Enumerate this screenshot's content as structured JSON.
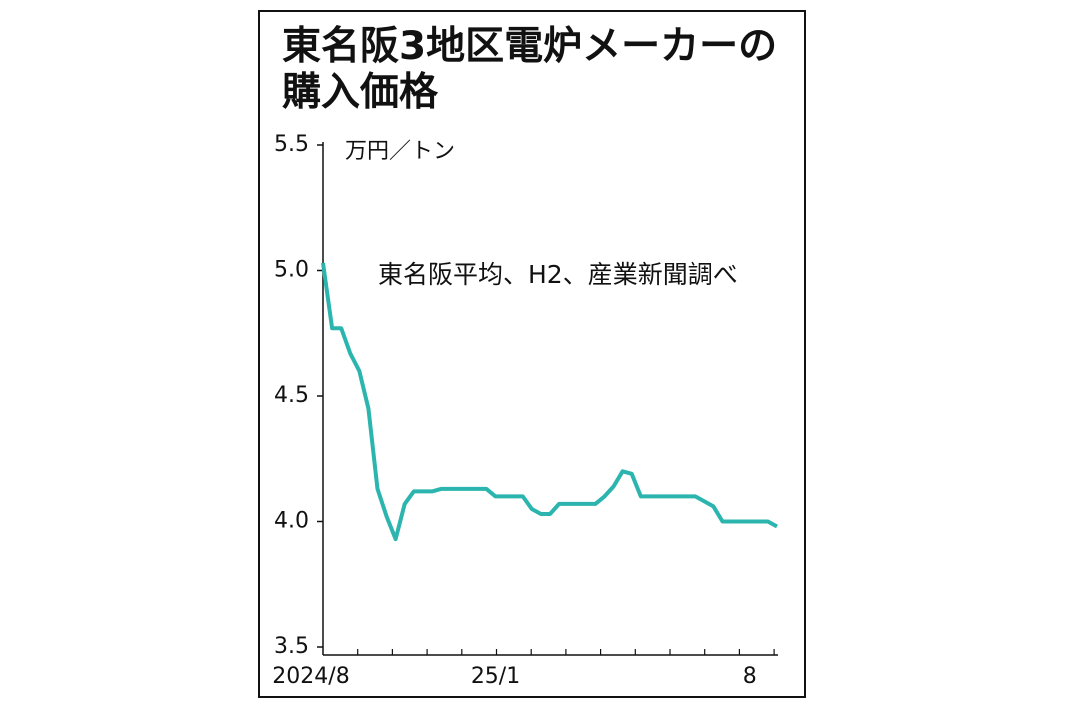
{
  "chart_data": {
    "type": "line",
    "title": "東名阪3地区電炉メーカーの購入価格",
    "y_unit": "万円／トン",
    "note": "東名阪平均、H2、産業新聞調べ",
    "categories": [
      "2024/8",
      null,
      null,
      null,
      null,
      null,
      null,
      null,
      null,
      null,
      null,
      null,
      null,
      null,
      null,
      null,
      null,
      null,
      null,
      "25/1",
      null,
      null,
      null,
      null,
      null,
      null,
      null,
      null,
      null,
      null,
      null,
      null,
      null,
      null,
      null,
      null,
      null,
      null,
      null,
      null,
      null,
      null,
      null,
      null,
      null,
      null,
      null,
      "8",
      null,
      null,
      null
    ],
    "series": [
      {
        "name": "東名阪平均",
        "color": "#2bb5ae",
        "values": [
          5.03,
          4.77,
          4.77,
          4.67,
          4.6,
          4.45,
          4.13,
          4.02,
          3.93,
          4.07,
          4.12,
          4.12,
          4.12,
          4.13,
          4.13,
          4.13,
          4.13,
          4.13,
          4.13,
          4.1,
          4.1,
          4.1,
          4.1,
          4.05,
          4.03,
          4.03,
          4.07,
          4.07,
          4.07,
          4.07,
          4.07,
          4.1,
          4.14,
          4.2,
          4.19,
          4.1,
          4.1,
          4.1,
          4.1,
          4.1,
          4.1,
          4.1,
          4.08,
          4.06,
          4.0,
          4.0,
          4.0,
          4.0,
          4.0,
          4.0,
          3.98
        ]
      }
    ],
    "ylim": [
      3.5,
      5.5
    ],
    "yticks": [
      3.5,
      {
        "value": 4.0,
        "label": "4.0"
      },
      4.5,
      {
        "value": 5.0,
        "label": "5.0"
      },
      5.5
    ],
    "grid": false
  }
}
